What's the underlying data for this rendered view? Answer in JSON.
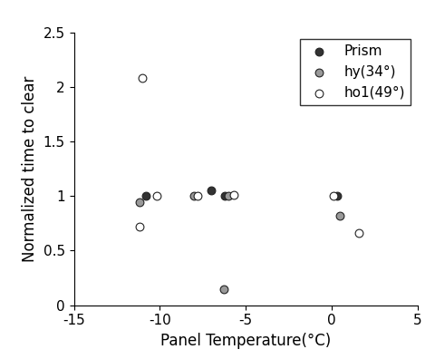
{
  "chart_data": {
    "type": "scatter",
    "x_label": "Panel Temperature(°C)",
    "y_label": "Normalized time to clear",
    "xlim": [
      -15,
      5
    ],
    "xticks": [
      -15,
      -10,
      -5,
      0,
      5
    ],
    "ylim": [
      0,
      2.5
    ],
    "yticks": [
      0,
      0.5,
      1,
      1.5,
      2,
      2.5
    ],
    "legend": "upper right",
    "series": [
      {
        "name": "Prism",
        "color": "#333333",
        "marker": "o",
        "x": [
          -10.8,
          -7.0,
          -6.2,
          0.3
        ],
        "values": [
          1.0,
          1.05,
          1.0,
          1.0
        ]
      },
      {
        "name": "hy(34°)",
        "color": "#999999",
        "marker": "o",
        "x": [
          -11.2,
          -8.0,
          -6.3,
          -6.0,
          0.5
        ],
        "values": [
          0.94,
          1.0,
          0.15,
          1.0,
          0.82
        ]
      },
      {
        "name": "ho1(49°)",
        "color": "#ffffff",
        "marker": "o",
        "x": [
          -11.0,
          -11.2,
          -10.2,
          -7.8,
          -5.7,
          0.1,
          1.6
        ],
        "values": [
          2.08,
          0.72,
          1.0,
          1.0,
          1.01,
          1.0,
          0.66
        ]
      }
    ]
  }
}
